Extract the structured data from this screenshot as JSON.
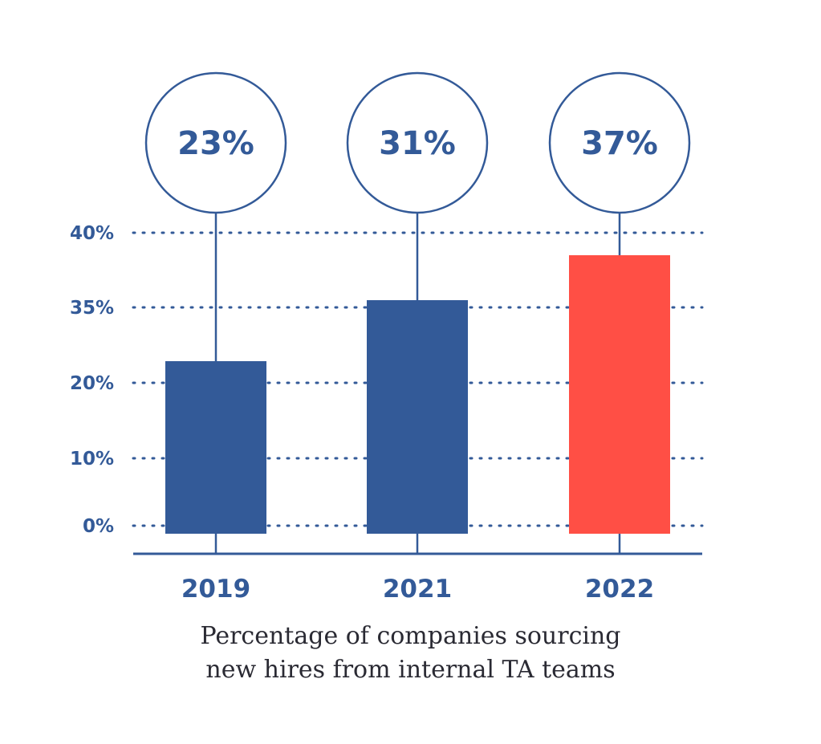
{
  "chart_data": {
    "type": "bar",
    "categories": [
      "2019",
      "2021",
      "2022"
    ],
    "values": [
      23,
      31,
      37
    ],
    "value_labels": [
      "23%",
      "31%",
      "37%"
    ],
    "y_ticks": [
      "0%",
      "10%",
      "20%",
      "35%",
      "40%"
    ],
    "caption_lines": [
      "Percentage of companies sourcing",
      "new hires from internal TA teams"
    ],
    "bar_colors": [
      "#335a98",
      "#335a98",
      "#ff4f45"
    ],
    "accent_color": "#335a98",
    "highlight_color": "#ff4f45",
    "gridlines": "dotted",
    "title": "",
    "xlabel": "",
    "ylabel": ""
  }
}
